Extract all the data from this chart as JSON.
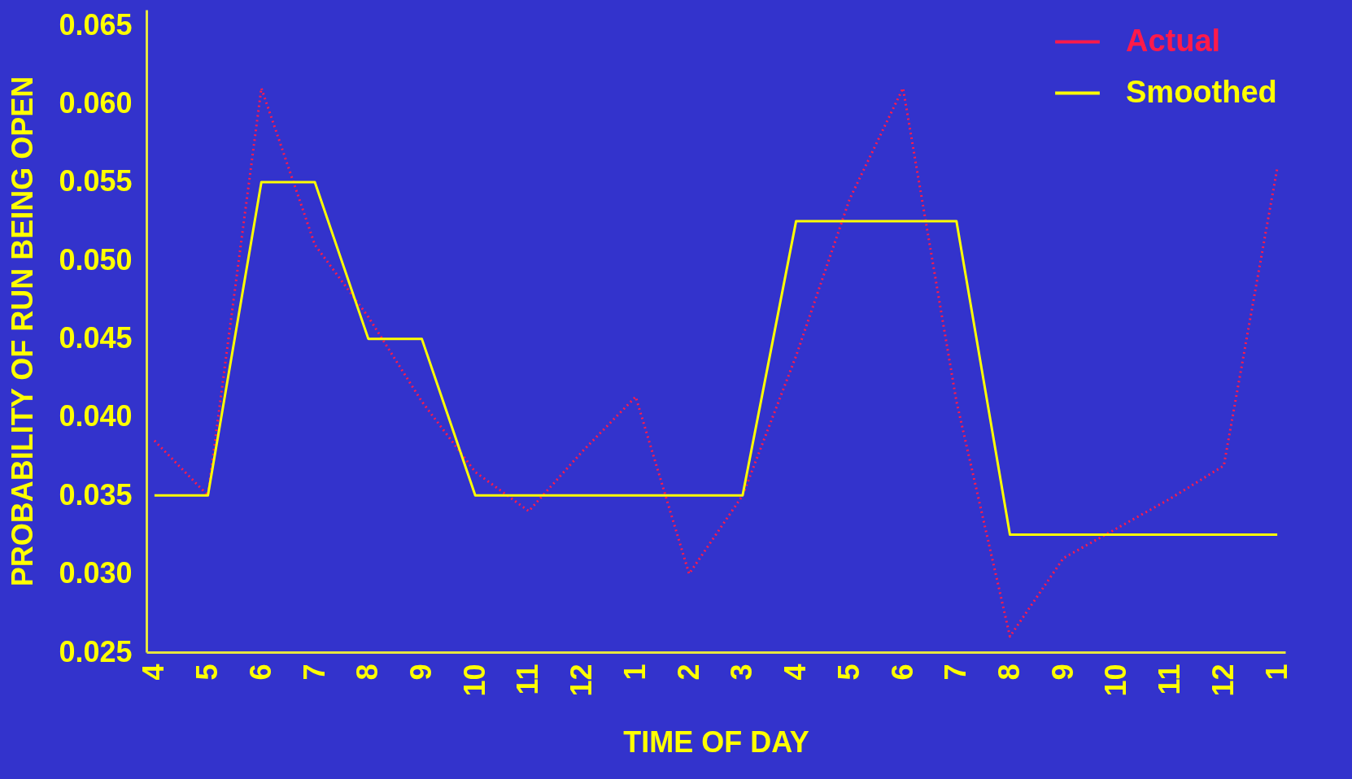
{
  "chart_data": {
    "type": "line",
    "xlabel": "TIME OF DAY",
    "ylabel": "PROBABILITY OF RUN BEING OPEN",
    "categories": [
      "4",
      "5",
      "6",
      "7",
      "8",
      "9",
      "10",
      "11",
      "12",
      "1",
      "2",
      "3",
      "4",
      "5",
      "6",
      "7",
      "8",
      "9",
      "10",
      "11",
      "12",
      "1"
    ],
    "ylim": [
      0.025,
      0.066
    ],
    "yticks": [
      0.025,
      {
        "value": 0.03,
        "label": "0.030"
      },
      0.035,
      {
        "value": 0.04,
        "label": "0.040"
      },
      0.045,
      {
        "value": 0.05,
        "label": "0.050"
      },
      0.055,
      {
        "value": 0.06,
        "label": "0.060"
      },
      0.065
    ],
    "series": [
      {
        "name": "Actual",
        "color": "#ff1a4a",
        "line_style": "dotted",
        "values": [
          0.0385,
          0.035,
          0.061,
          0.051,
          0.0464,
          0.041,
          0.0365,
          0.034,
          0.0378,
          0.0413,
          0.03,
          0.035,
          0.0439,
          0.0539,
          0.061,
          0.041,
          0.026,
          0.031,
          0.0329,
          0.0348,
          0.0369,
          0.0559
        ]
      },
      {
        "name": "Smoothed",
        "color": "#ffff00",
        "line_style": "solid",
        "values": [
          0.035,
          0.035,
          0.055,
          0.055,
          0.045,
          0.045,
          0.035,
          0.035,
          0.035,
          0.035,
          0.035,
          0.035,
          0.0525,
          0.0525,
          0.0525,
          0.0525,
          0.0325,
          0.0325,
          0.0325,
          0.0325,
          0.0325,
          0.0325
        ]
      }
    ],
    "legend": "top right",
    "grid": false,
    "marker": "none"
  }
}
